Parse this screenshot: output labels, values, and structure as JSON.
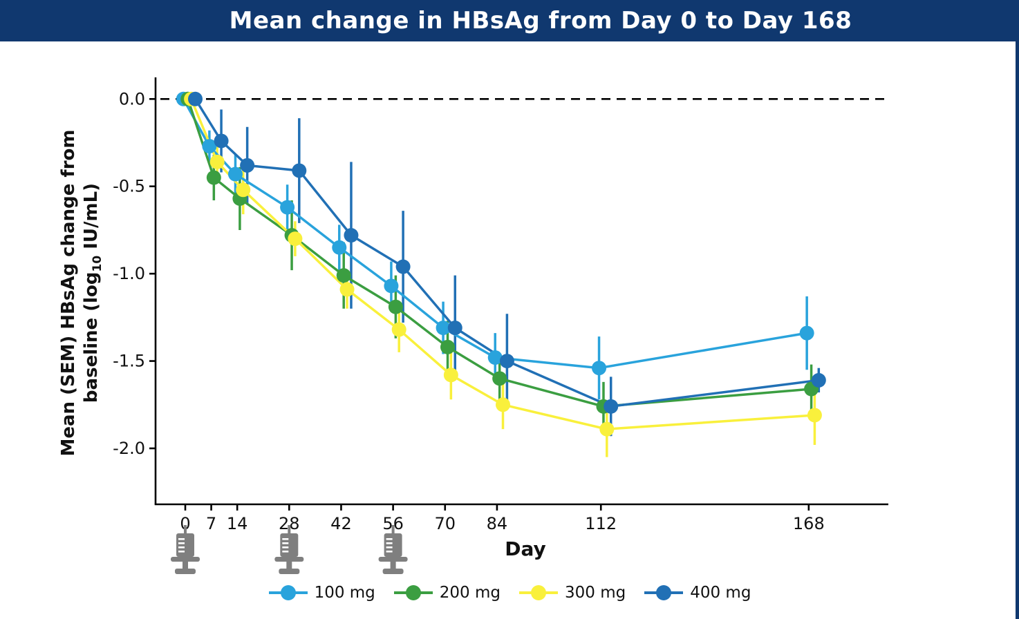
{
  "title": "Mean change in HBsAg from Day 0 to Day 168",
  "colors": {
    "header_bar": "#10386F",
    "axis": "#000000",
    "zero_line": "#000000",
    "syringe_gray": "#7F7F7F",
    "series_100mg": "#29A3DC",
    "series_200mg": "#3B9E41",
    "series_300mg": "#F9F03C",
    "series_400mg": "#2170B5"
  },
  "icons": {
    "syringe": "syringe-icon"
  },
  "chart_data": {
    "type": "line",
    "title": "Mean change in HBsAg from Day 0 to Day 168",
    "xlabel": "Day",
    "ylabel": "Mean (SEM) HBsAg change from baseline (log10 IU/mL)",
    "ylabel_parts": {
      "line1": "Mean (SEM) HBsAg change from",
      "line2_pre": "baseline (log",
      "line2_sub": "10",
      "line2_post": " IU/mL)"
    },
    "x": [
      0,
      7,
      14,
      28,
      42,
      56,
      70,
      84,
      112,
      168
    ],
    "x_tick_labels": [
      "0",
      "7",
      "14",
      "28",
      "42",
      "56",
      "70",
      "84",
      "112",
      "168"
    ],
    "y_ticks": [
      0.0,
      -0.5,
      -1.0,
      -1.5,
      -2.0
    ],
    "y_tick_labels": [
      "0.0",
      "-0.5",
      "-1.0",
      "-1.5",
      "-2.0"
    ],
    "xlim": [
      -8,
      190
    ],
    "ylim": [
      -2.32,
      0.12
    ],
    "grid": false,
    "zero_reference_line": {
      "value": 0,
      "style": "dashed"
    },
    "dose_days": [
      0,
      28,
      56
    ],
    "legend_position": "bottom",
    "error_bars": "SEM, vertical, no caps",
    "series": [
      {
        "name": "100 mg",
        "color": "#29A3DC",
        "dodge_days": -0.5,
        "values": [
          0,
          -0.27,
          -0.43,
          -0.62,
          -0.85,
          -1.07,
          -1.31,
          -1.48,
          -1.54,
          -1.34
        ],
        "sem": [
          0,
          0.09,
          0.11,
          0.13,
          0.13,
          0.14,
          0.15,
          0.14,
          0.18,
          0.21
        ]
      },
      {
        "name": "200 mg",
        "color": "#3B9E41",
        "dodge_days": 0.7,
        "values": [
          0,
          -0.45,
          -0.57,
          -0.78,
          -1.01,
          -1.19,
          -1.42,
          -1.6,
          -1.76,
          -1.66
        ],
        "sem": [
          0,
          0.13,
          0.18,
          0.2,
          0.19,
          0.18,
          0.15,
          0.13,
          0.14,
          0.14
        ]
      },
      {
        "name": "300 mg",
        "color": "#F9F03C",
        "dodge_days": 1.6,
        "values": [
          0,
          -0.36,
          -0.52,
          -0.8,
          -1.09,
          -1.32,
          -1.58,
          -1.75,
          -1.89,
          -1.81
        ],
        "sem": [
          0,
          0.12,
          0.14,
          0.1,
          0.11,
          0.13,
          0.14,
          0.14,
          0.16,
          0.17
        ]
      },
      {
        "name": "400 mg",
        "color": "#2170B5",
        "dodge_days": 2.7,
        "values": [
          0,
          -0.24,
          -0.38,
          -0.41,
          -0.78,
          -0.96,
          -1.31,
          -1.5,
          -1.76,
          -1.61
        ],
        "sem": [
          0,
          0.18,
          0.22,
          0.3,
          0.42,
          0.32,
          0.3,
          0.27,
          0.17,
          0.07
        ]
      }
    ]
  }
}
